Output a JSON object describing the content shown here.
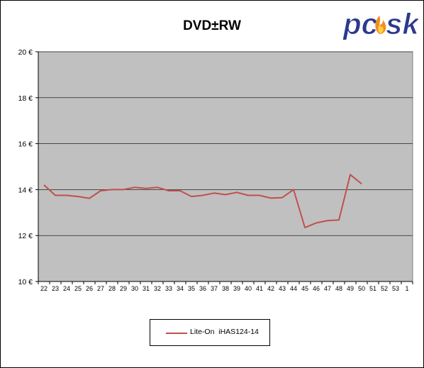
{
  "chart_data": {
    "type": "line",
    "title": "DVD±RW",
    "categories": [
      "22",
      "23",
      "24",
      "25",
      "26",
      "27",
      "28",
      "29",
      "30",
      "31",
      "32",
      "33",
      "34",
      "35",
      "36",
      "37",
      "38",
      "39",
      "40",
      "41",
      "42",
      "43",
      "44",
      "45",
      "46",
      "47",
      "48",
      "49",
      "50",
      "51",
      "52",
      "53",
      "1"
    ],
    "series": [
      {
        "name": "Lite-On  iHAS124-14",
        "color": "#c0504d",
        "values": [
          14.2,
          13.75,
          13.75,
          13.7,
          13.62,
          13.95,
          14.0,
          14.0,
          14.1,
          14.05,
          14.1,
          13.95,
          13.95,
          13.7,
          13.75,
          13.85,
          13.78,
          13.88,
          13.75,
          13.75,
          13.63,
          13.65,
          14.0,
          12.35,
          12.55,
          12.65,
          12.68,
          14.65,
          14.25,
          null,
          null,
          null,
          null
        ]
      }
    ],
    "yticks": [
      "20 €",
      "18 €",
      "16 €",
      "14 €",
      "12 €",
      "10 €"
    ],
    "ylim": [
      10,
      20
    ],
    "ytick_values": [
      20,
      18,
      16,
      14,
      12,
      10
    ],
    "grid": true,
    "legend_position": "bottom",
    "plot_background": "#c0c0c0"
  },
  "logo": {
    "text": "pcsk",
    "colors": {
      "letters": "#2b3a8c",
      "flame": "#f28c28"
    }
  }
}
